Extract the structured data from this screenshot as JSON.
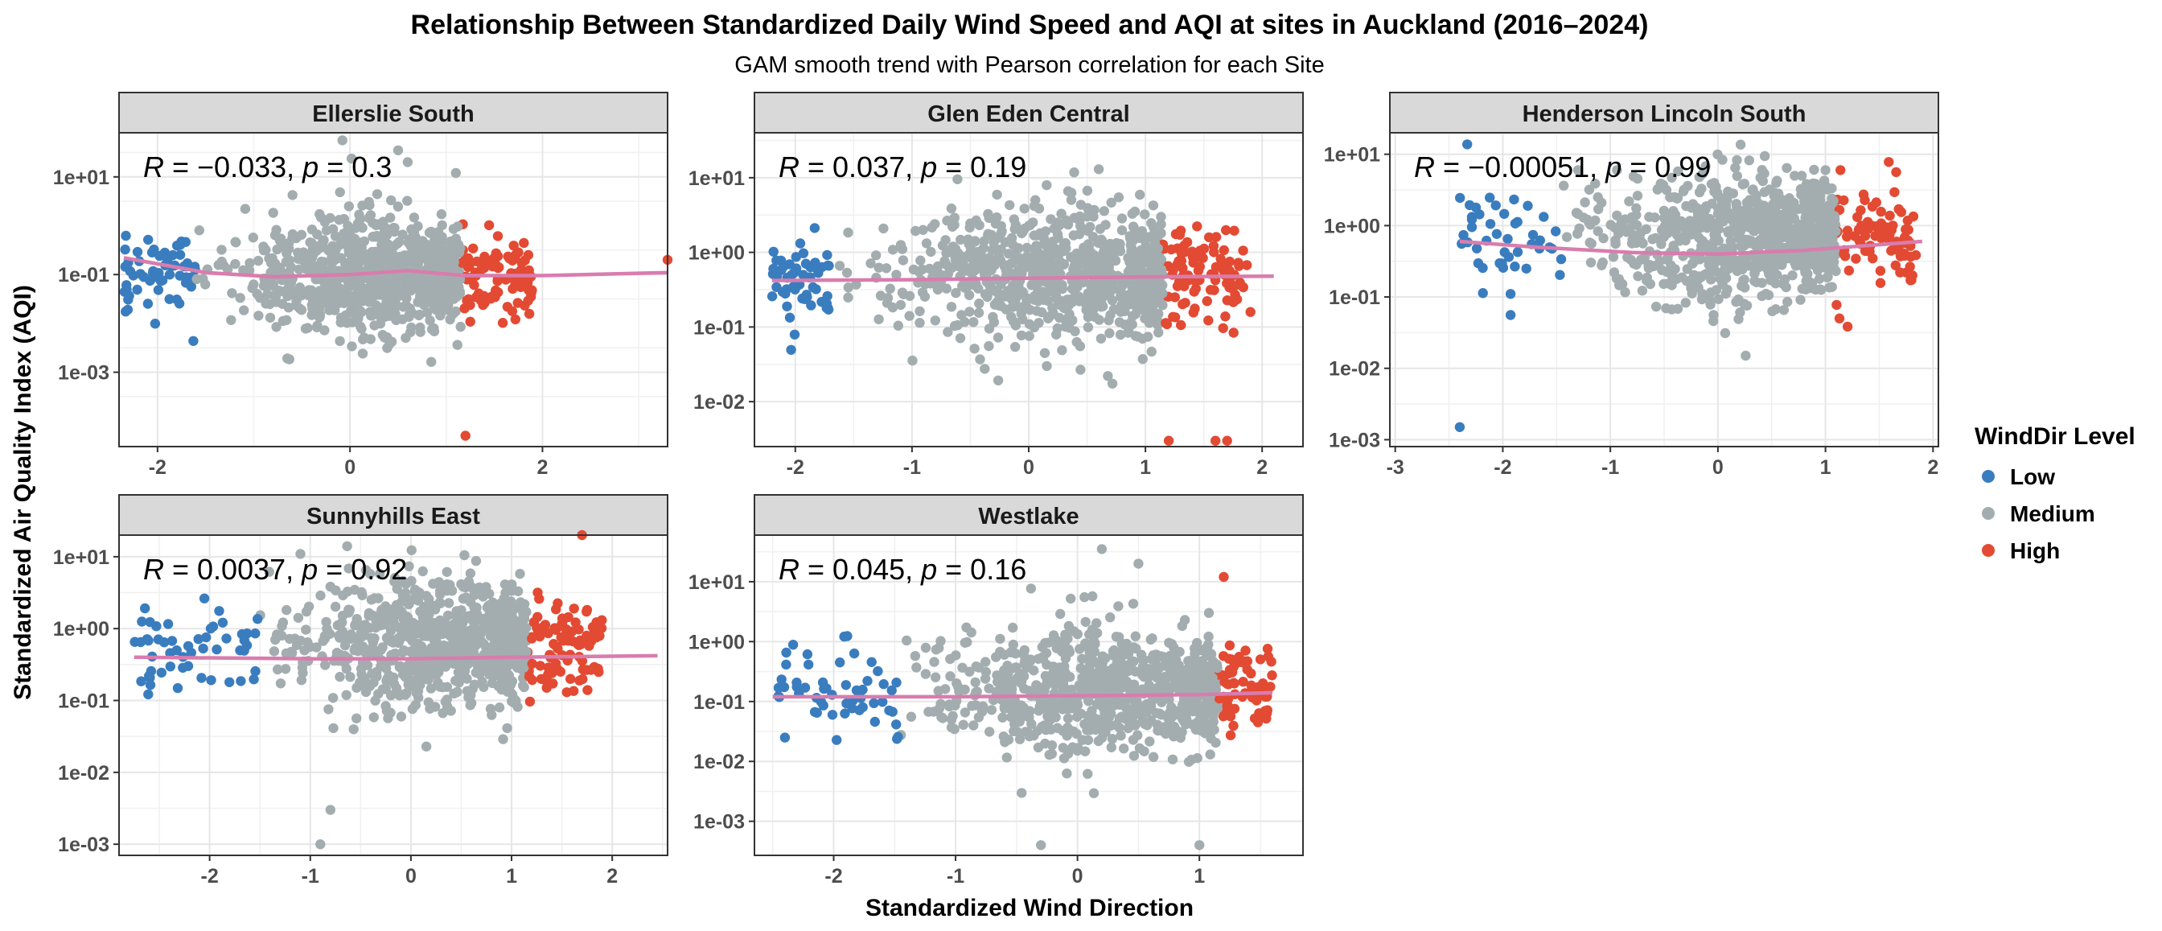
{
  "chart_data": {
    "type": "scatter",
    "title": "Relationship Between Standardized Daily Wind Speed and AQI at sites in Auckland (2016–2024)",
    "subtitle": "GAM smooth trend with Pearson correlation for each Site",
    "xlabel": "Standardized Wind Direction",
    "ylabel": "Standardized Air Quality Index (AQI)",
    "y_scale": "log10",
    "grid": true,
    "legend": {
      "title": "WindDir Level",
      "placement": "right",
      "items": [
        {
          "label": "Low",
          "color": "#3a7dbf"
        },
        {
          "label": "Medium",
          "color": "#a3adaf"
        },
        {
          "label": "High",
          "color": "#e34a33"
        }
      ]
    },
    "smooth_color": "#d97cae",
    "facets": [
      {
        "site": "Ellerslie South",
        "annotation": {
          "r": "−0.033",
          "p": "0.3"
        },
        "xlim": [
          -2.4,
          3.3
        ],
        "ylim": [
          3e-05,
          80
        ],
        "x_ticks": [
          -2,
          0,
          2
        ],
        "y_ticks": [
          "1e+01",
          "1e-01",
          "1e-03"
        ],
        "low_cut": -1.6,
        "high_cut": 1.15,
        "x_min": -2.35,
        "x_max": 3.3,
        "center": 0.1,
        "spread": 0.6,
        "smooth": [
          [
            -2.35,
            0.22
          ],
          [
            -1.5,
            0.11
          ],
          [
            -0.8,
            0.09
          ],
          [
            0,
            0.1
          ],
          [
            0.6,
            0.12
          ],
          [
            1.2,
            0.095
          ],
          [
            2.0,
            0.095
          ],
          [
            3.3,
            0.11
          ]
        ],
        "outliers": [
          [
            0.5,
            35
          ],
          [
            0.6,
            20
          ],
          [
            1.1,
            12
          ],
          [
            1.2,
            5e-05
          ],
          [
            3.3,
            0.2
          ]
        ]
      },
      {
        "site": "Glen Eden Central",
        "annotation": {
          "r": "0.037",
          "p": "0.19"
        },
        "xlim": [
          -2.35,
          2.35
        ],
        "ylim": [
          0.0025,
          40
        ],
        "x_ticks": [
          -2,
          -1,
          0,
          1,
          2
        ],
        "y_ticks": [
          "1e+01",
          "1e+00",
          "1e-01",
          "1e-02"
        ],
        "low_cut": -1.7,
        "high_cut": 1.15,
        "x_min": -2.2,
        "x_max": 2.1,
        "center": 0.5,
        "spread": 0.45,
        "smooth": [
          [
            -2.2,
            0.42
          ],
          [
            -1,
            0.43
          ],
          [
            0,
            0.45
          ],
          [
            1,
            0.47
          ],
          [
            2.1,
            0.48
          ]
        ],
        "outliers": [
          [
            0.6,
            13
          ],
          [
            1.2,
            0.003
          ],
          [
            1.6,
            0.003
          ],
          [
            1.7,
            0.003
          ]
        ]
      },
      {
        "site": "Henderson Lincoln South",
        "annotation": {
          "r": "−0.00051",
          "p": "0.99"
        },
        "xlim": [
          -3.05,
          2.05
        ],
        "ylim": [
          0.0008,
          20
        ],
        "x_ticks": [
          -3,
          -2,
          -1,
          0,
          1,
          2
        ],
        "y_ticks": [
          "1e+01",
          "1e+00",
          "1e-01",
          "1e-02",
          "1e-03"
        ],
        "low_cut": -1.45,
        "high_cut": 1.1,
        "x_min": -2.4,
        "x_max": 1.9,
        "center": 0.7,
        "spread": 0.45,
        "smooth": [
          [
            -2.4,
            0.6
          ],
          [
            -1.7,
            0.5
          ],
          [
            -0.8,
            0.42
          ],
          [
            0,
            0.4
          ],
          [
            0.8,
            0.45
          ],
          [
            1.9,
            0.6
          ]
        ],
        "outliers": [
          [
            -2.4,
            0.0015
          ],
          [
            1.0,
            6
          ],
          [
            -1.3,
            6
          ]
        ]
      },
      {
        "site": "Sunnyhills East",
        "annotation": {
          "r": "0.0037",
          "p": "0.92"
        },
        "xlim": [
          -2.9,
          2.55
        ],
        "ylim": [
          0.0007,
          20
        ],
        "x_ticks": [
          -2,
          -1,
          0,
          1,
          2
        ],
        "y_ticks": [
          "1e+01",
          "1e+00",
          "1e-01",
          "1e-02",
          "1e-03"
        ],
        "low_cut": -1.5,
        "high_cut": 1.15,
        "x_min": -2.75,
        "x_max": 2.45,
        "center": 0.6,
        "spread": 0.45,
        "smooth": [
          [
            -2.75,
            0.4
          ],
          [
            -1,
            0.38
          ],
          [
            0,
            0.38
          ],
          [
            1,
            0.4
          ],
          [
            2.45,
            0.42
          ]
        ],
        "outliers": [
          [
            -0.9,
            0.001
          ],
          [
            1.7,
            20
          ],
          [
            -0.8,
            0.003
          ]
        ]
      },
      {
        "site": "Westlake",
        "annotation": {
          "r": "0.045",
          "p": "0.16"
        },
        "xlim": [
          -2.65,
          1.85
        ],
        "ylim": [
          0.00027,
          60
        ],
        "x_ticks": [
          -2,
          -1,
          0,
          1
        ],
        "y_ticks": [
          "1e+01",
          "1e+00",
          "1e-01",
          "1e-02",
          "1e-03"
        ],
        "low_cut": -1.45,
        "high_cut": 1.15,
        "x_min": -2.5,
        "x_max": 1.6,
        "center": 0.15,
        "spread": 0.5,
        "smooth": [
          [
            -2.5,
            0.12
          ],
          [
            -1,
            0.12
          ],
          [
            0,
            0.125
          ],
          [
            1,
            0.13
          ],
          [
            1.6,
            0.14
          ]
        ],
        "outliers": [
          [
            0.2,
            35
          ],
          [
            0.5,
            20
          ],
          [
            -0.3,
            0.0004
          ],
          [
            1.0,
            0.0004
          ],
          [
            1.2,
            12
          ]
        ]
      }
    ]
  }
}
